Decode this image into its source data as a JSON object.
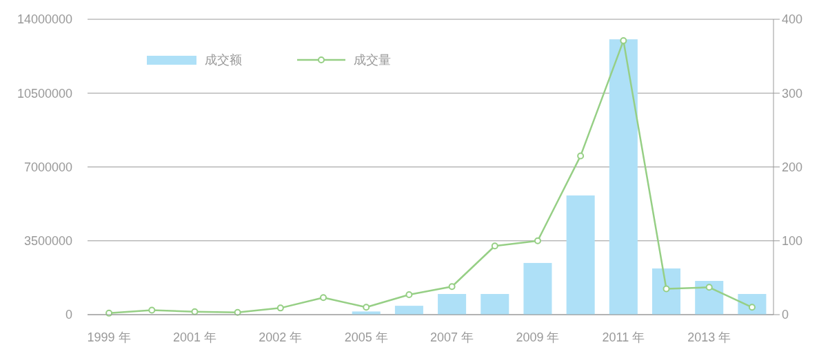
{
  "chart_data": {
    "type": "bar",
    "categories": [
      "1999 年",
      null,
      "2001 年",
      null,
      "2002 年",
      null,
      "2005 年",
      null,
      "2007 年",
      null,
      "2009 年",
      null,
      "2011 年",
      null,
      "2013 年",
      null
    ],
    "series": [
      {
        "name": "成交额",
        "color": "#aee0f7",
        "values": [
          0,
          0,
          0,
          0,
          0,
          0,
          150000,
          420000,
          980000,
          980000,
          2450000,
          5650000,
          13050000,
          2190000,
          1600000,
          980000
        ]
      },
      {
        "name": "成交量",
        "type": "line",
        "axis": "y2",
        "color": "#96cf85",
        "marker": "circle",
        "values": [
          2,
          6,
          4,
          3,
          9,
          23,
          10,
          27,
          38,
          93,
          100,
          215,
          371,
          35,
          37,
          10
        ]
      }
    ],
    "ylim": [
      0,
      14000000
    ],
    "yticks": [
      0,
      3500000,
      7000000,
      10500000,
      14000000
    ],
    "y2lim": [
      0,
      400
    ],
    "y2ticks": [
      0,
      100,
      200,
      300,
      400
    ],
    "grid": "y",
    "legend": "top left"
  }
}
